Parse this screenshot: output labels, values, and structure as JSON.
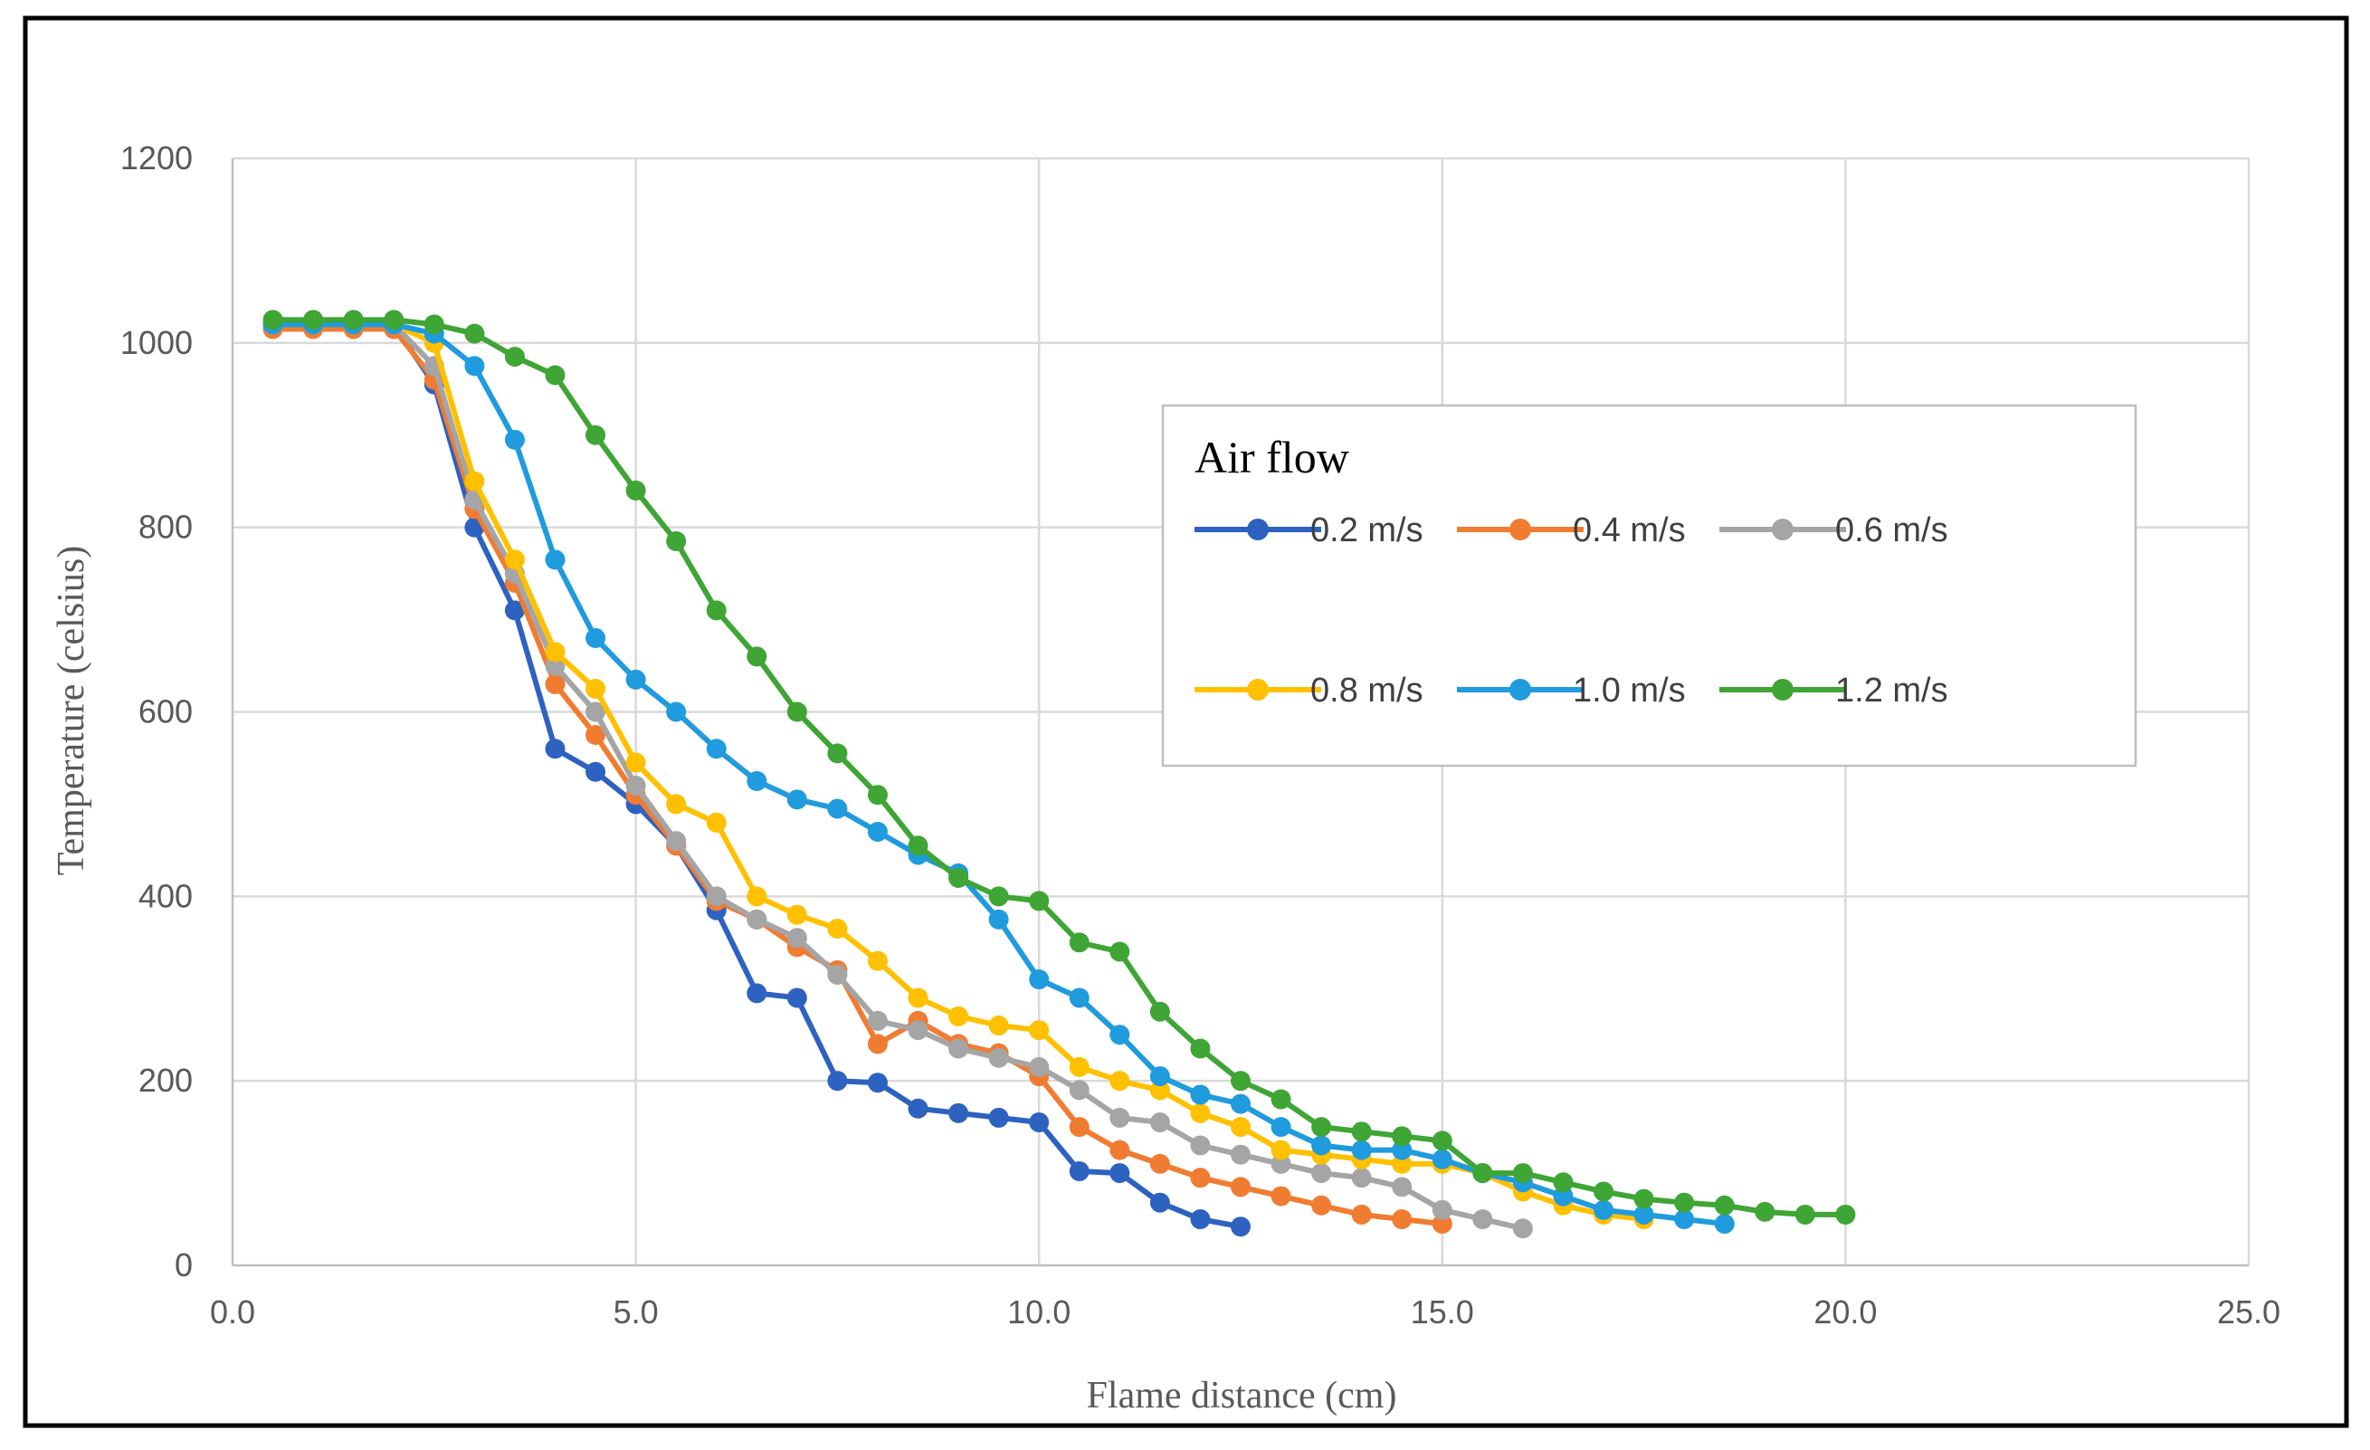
{
  "chart_data": {
    "type": "line",
    "title": "",
    "xlabel": "Flame distance (cm)",
    "ylabel": "Temperature (celsius)",
    "xlim": [
      0,
      25
    ],
    "ylim": [
      0,
      1200
    ],
    "xticks": [
      0,
      5,
      10,
      15,
      20,
      25
    ],
    "xtick_labels": [
      "0.0",
      "5.0",
      "10.0",
      "15.0",
      "20.0",
      "25.0"
    ],
    "yticks": [
      0,
      200,
      400,
      600,
      800,
      1000,
      1200
    ],
    "ytick_labels": [
      "0",
      "200",
      "400",
      "600",
      "800",
      "1000",
      "1200"
    ],
    "grid": true,
    "legend": {
      "title": "Air flow",
      "position": "right-center"
    },
    "series": [
      {
        "name": "0.2 m/s",
        "color": "#2E62C0",
        "x": [
          0.5,
          1.0,
          1.5,
          2.0,
          2.5,
          3.0,
          3.5,
          4.0,
          4.5,
          5.0,
          5.5,
          6.0,
          6.5,
          7.0,
          7.5,
          8.0,
          8.5,
          9.0,
          9.5,
          10.0,
          10.5,
          11.0,
          11.5,
          12.0,
          12.5
        ],
        "y": [
          1020,
          1020,
          1020,
          1020,
          955,
          800,
          710,
          560,
          535,
          500,
          455,
          385,
          295,
          290,
          200,
          198,
          170,
          165,
          160,
          155,
          102,
          100,
          68,
          50,
          42
        ]
      },
      {
        "name": "0.4 m/s",
        "color": "#F07C32",
        "x": [
          0.5,
          1.0,
          1.5,
          2.0,
          2.5,
          3.0,
          3.5,
          4.0,
          4.5,
          5.0,
          5.5,
          6.0,
          6.5,
          7.0,
          7.5,
          8.0,
          8.5,
          9.0,
          9.5,
          10.0,
          10.5,
          11.0,
          11.5,
          12.0,
          12.5,
          13.0,
          13.5,
          14.0,
          14.5,
          15.0
        ],
        "y": [
          1015,
          1015,
          1015,
          1015,
          960,
          820,
          740,
          630,
          575,
          510,
          455,
          395,
          375,
          345,
          320,
          240,
          265,
          240,
          230,
          205,
          150,
          125,
          110,
          95,
          85,
          75,
          65,
          55,
          50,
          45
        ]
      },
      {
        "name": "0.6 m/s",
        "color": "#A5A5A5",
        "x": [
          0.5,
          1.0,
          1.5,
          2.0,
          2.5,
          3.0,
          3.5,
          4.0,
          4.5,
          5.0,
          5.5,
          6.0,
          6.5,
          7.0,
          7.5,
          8.0,
          8.5,
          9.0,
          9.5,
          10.0,
          10.5,
          11.0,
          11.5,
          12.0,
          12.5,
          13.0,
          13.5,
          14.0,
          14.5,
          15.0,
          15.5,
          16.0
        ],
        "y": [
          1020,
          1020,
          1020,
          1020,
          975,
          830,
          750,
          650,
          600,
          520,
          460,
          400,
          375,
          355,
          315,
          265,
          255,
          235,
          225,
          215,
          190,
          160,
          155,
          130,
          120,
          110,
          100,
          95,
          85,
          60,
          50,
          40
        ]
      },
      {
        "name": "0.8 m/s",
        "color": "#FFC000",
        "x": [
          0.5,
          1.0,
          1.5,
          2.0,
          2.5,
          3.0,
          3.5,
          4.0,
          4.5,
          5.0,
          5.5,
          6.0,
          6.5,
          7.0,
          7.5,
          8.0,
          8.5,
          9.0,
          9.5,
          10.0,
          10.5,
          11.0,
          11.5,
          12.0,
          12.5,
          13.0,
          13.5,
          14.0,
          14.5,
          15.0,
          15.5,
          16.0,
          16.5,
          17.0,
          17.5
        ],
        "y": [
          1020,
          1020,
          1020,
          1020,
          1000,
          850,
          765,
          665,
          625,
          545,
          500,
          480,
          400,
          380,
          365,
          330,
          290,
          270,
          260,
          255,
          215,
          200,
          190,
          165,
          150,
          125,
          120,
          115,
          110,
          110,
          100,
          80,
          65,
          55,
          50
        ]
      },
      {
        "name": "1.0 m/s",
        "color": "#1F9BDE",
        "x": [
          0.5,
          1.0,
          1.5,
          2.0,
          2.5,
          3.0,
          3.5,
          4.0,
          4.5,
          5.0,
          5.5,
          6.0,
          6.5,
          7.0,
          7.5,
          8.0,
          8.5,
          9.0,
          9.5,
          10.0,
          10.5,
          11.0,
          11.5,
          12.0,
          12.5,
          13.0,
          13.5,
          14.0,
          14.5,
          15.0,
          15.5,
          16.0,
          16.5,
          17.0,
          17.5,
          18.0,
          18.5
        ],
        "y": [
          1020,
          1020,
          1020,
          1020,
          1010,
          975,
          895,
          765,
          680,
          635,
          600,
          560,
          525,
          505,
          495,
          470,
          445,
          425,
          375,
          310,
          290,
          250,
          205,
          185,
          175,
          150,
          130,
          125,
          125,
          115,
          100,
          90,
          75,
          60,
          55,
          50,
          45
        ]
      },
      {
        "name": "1.2 m/s",
        "color": "#3FA535",
        "x": [
          0.5,
          1.0,
          1.5,
          2.0,
          2.5,
          3.0,
          3.5,
          4.0,
          4.5,
          5.0,
          5.5,
          6.0,
          6.5,
          7.0,
          7.5,
          8.0,
          8.5,
          9.0,
          9.5,
          10.0,
          10.5,
          11.0,
          11.5,
          12.0,
          12.5,
          13.0,
          13.5,
          14.0,
          14.5,
          15.0,
          15.5,
          16.0,
          16.5,
          17.0,
          17.5,
          18.0,
          18.5,
          19.0,
          19.5,
          20.0
        ],
        "y": [
          1025,
          1025,
          1025,
          1025,
          1020,
          1010,
          985,
          965,
          900,
          840,
          785,
          710,
          660,
          600,
          555,
          510,
          455,
          420,
          400,
          395,
          350,
          340,
          275,
          235,
          200,
          180,
          150,
          145,
          140,
          135,
          100,
          100,
          90,
          80,
          72,
          68,
          65,
          58,
          55,
          55
        ]
      }
    ]
  }
}
